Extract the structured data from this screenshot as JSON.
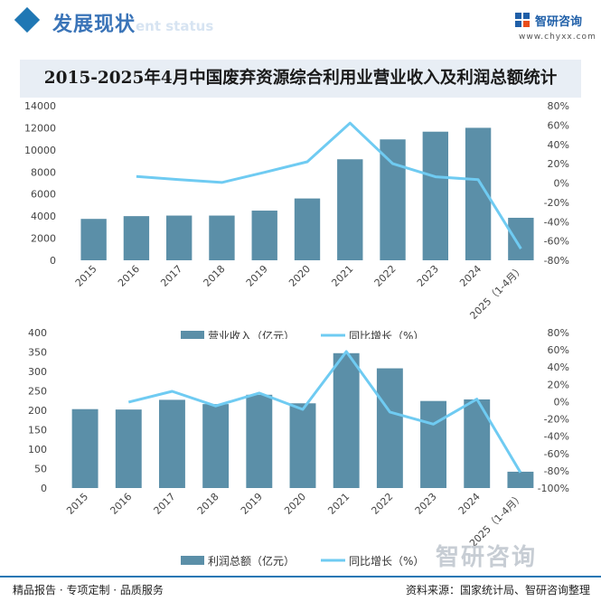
{
  "header": {
    "section_title": "发展现状",
    "section_subtitle": "ent status",
    "logo_text": "智研咨询",
    "logo_url": "www.chyxx.com"
  },
  "title": "2015-2025年4月中国废弃资源综合利用业营业收入及利润总额统计",
  "chart_data": [
    {
      "type": "bar",
      "categories": [
        "2015",
        "2016",
        "2017",
        "2018",
        "2019",
        "2020",
        "2021",
        "2022",
        "2023",
        "2024",
        "2025（1-4月）"
      ],
      "series": [
        {
          "name": "营业收入（亿元）",
          "type": "bar",
          "axis": "left",
          "color": "#5b8fa8",
          "values": [
            3750,
            4000,
            4050,
            4050,
            4500,
            5600,
            9150,
            10950,
            11650,
            12000,
            3850
          ]
        },
        {
          "name": "同比增长（%）",
          "type": "line",
          "axis": "right",
          "color": "#6fcbf2",
          "values": [
            null,
            6.7,
            3.5,
            0.6,
            11,
            22,
            62,
            20,
            6.5,
            3.5,
            -68
          ]
        }
      ],
      "left_ylim": [
        0,
        14000
      ],
      "left_ticks": [
        "0",
        "2000",
        "4000",
        "6000",
        "8000",
        "10000",
        "12000",
        "14000"
      ],
      "right_ylim": [
        -80,
        80
      ],
      "right_ticks": [
        "-80%",
        "-60%",
        "-40%",
        "-20%",
        "0%",
        "20%",
        "40%",
        "60%",
        "80%"
      ],
      "legend": "bottom"
    },
    {
      "type": "bar",
      "categories": [
        "2015",
        "2016",
        "2017",
        "2018",
        "2019",
        "2020",
        "2021",
        "2022",
        "2023",
        "2024",
        "2025（1-4月）"
      ],
      "series": [
        {
          "name": "利润总额（亿元）",
          "type": "bar",
          "axis": "left",
          "color": "#5b8fa8",
          "values": [
            203,
            202,
            227,
            216,
            240,
            218,
            347,
            308,
            224,
            228,
            42
          ]
        },
        {
          "name": "同比增长（%）",
          "type": "line",
          "axis": "right",
          "color": "#6fcbf2",
          "values": [
            null,
            -0.5,
            12,
            -5,
            10,
            -9,
            58,
            -12,
            -26,
            3,
            -82
          ]
        }
      ],
      "left_ylim": [
        0,
        400
      ],
      "left_ticks": [
        "0",
        "50",
        "100",
        "150",
        "200",
        "250",
        "300",
        "350",
        "400"
      ],
      "right_ylim": [
        -100,
        80
      ],
      "right_ticks": [
        "-100%",
        "-80%",
        "-60%",
        "-40%",
        "-20%",
        "0%",
        "20%",
        "40%",
        "60%",
        "80%"
      ],
      "legend": "bottom"
    }
  ],
  "footer": {
    "left": "精品报告 · 专项定制 · 品质服务",
    "right": "资料来源：国家统计局、智研咨询整理"
  }
}
